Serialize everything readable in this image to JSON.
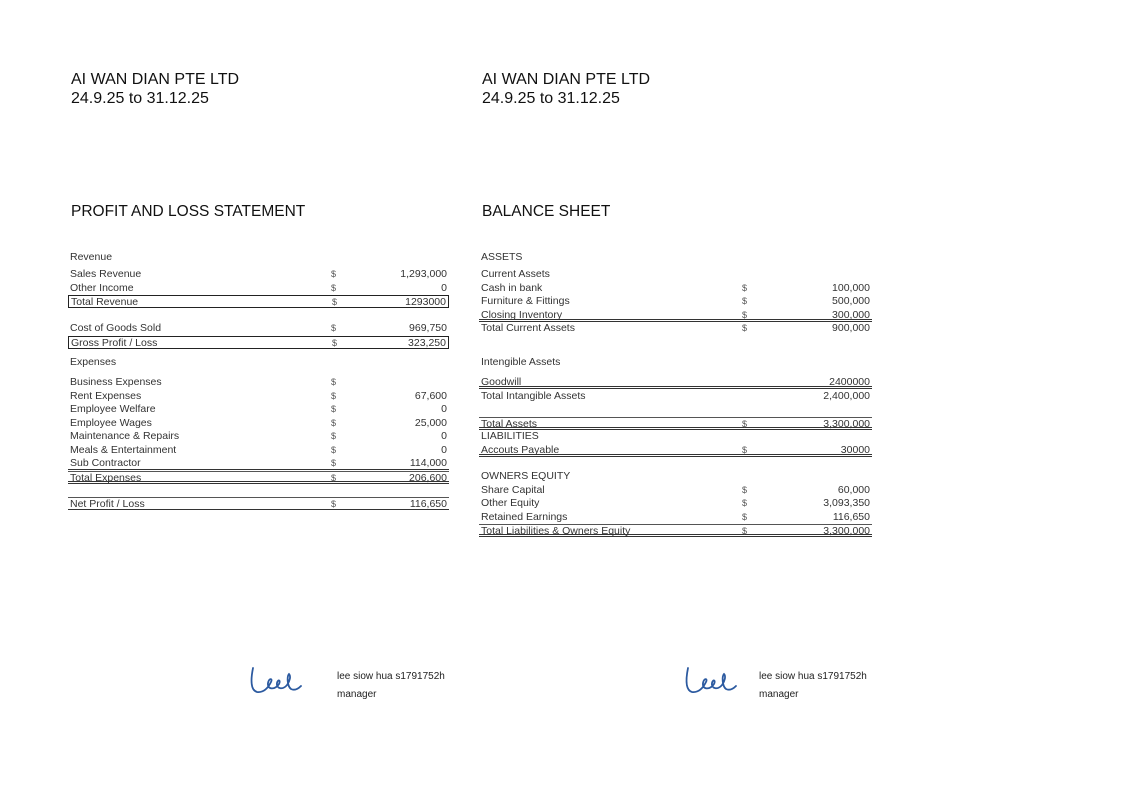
{
  "company": "AI WAN DIAN PTE LTD",
  "period": "24.9.25 to 31.12.25",
  "profit_loss": {
    "title": "PROFIT AND LOSS STATEMENT",
    "rows": [
      {
        "label": "Revenue",
        "currency": "",
        "value": ""
      },
      {
        "label": "Sales Revenue",
        "currency": "$",
        "value": "1,293,000"
      },
      {
        "label": "Other Income",
        "currency": "$",
        "value": "0"
      },
      {
        "label": "Total Revenue",
        "currency": "$",
        "value": "1293000"
      },
      {
        "label": "Cost of Goods Sold",
        "currency": "$",
        "value": "969,750"
      },
      {
        "label": "Gross Profit / Loss",
        "currency": "$",
        "value": "323,250"
      },
      {
        "label": "Expenses",
        "currency": "",
        "value": ""
      },
      {
        "label": "Business Expenses",
        "currency": "$",
        "value": ""
      },
      {
        "label": "Rent Expenses",
        "currency": "$",
        "value": "67,600"
      },
      {
        "label": "Employee Welfare",
        "currency": "$",
        "value": "0"
      },
      {
        "label": "Employee Wages",
        "currency": "$",
        "value": "25,000"
      },
      {
        "label": "Maintenance  & Repairs",
        "currency": "$",
        "value": "0"
      },
      {
        "label": "Meals & Entertainment",
        "currency": "$",
        "value": "0"
      },
      {
        "label": "Sub Contractor",
        "currency": "$",
        "value": "114,000"
      },
      {
        "label": "Total Expenses",
        "currency": "$",
        "value": "206,600"
      },
      {
        "label": "Net  Profit / Loss",
        "currency": "$",
        "value": "116,650"
      }
    ]
  },
  "balance_sheet": {
    "title": "BALANCE SHEET",
    "rows": [
      {
        "label": "ASSETS",
        "currency": "",
        "value": ""
      },
      {
        "label": "Current Assets",
        "currency": "",
        "value": ""
      },
      {
        "label": "Cash in bank",
        "currency": "$",
        "value": "100,000"
      },
      {
        "label": "Furniture & Fittings",
        "currency": "$",
        "value": "500,000"
      },
      {
        "label": "Closing Inventory",
        "currency": "$",
        "value": "300,000"
      },
      {
        "label": "Total Current Assets",
        "currency": "$",
        "value": "900,000"
      },
      {
        "label": "Intengible Assets",
        "currency": "",
        "value": ""
      },
      {
        "label": "Goodwill",
        "currency": "",
        "value": "2400000"
      },
      {
        "label": "Total Intangible Assets",
        "currency": "",
        "value": "2,400,000"
      },
      {
        "label": "Total Assets",
        "currency": "$",
        "value": "3,300,000"
      },
      {
        "label": "LIABILITIES",
        "currency": "",
        "value": ""
      },
      {
        "label": "Accouts  Payable",
        "currency": "$",
        "value": "30000"
      },
      {
        "label": "OWNERS EQUITY",
        "currency": "",
        "value": ""
      },
      {
        "label": "Share Capital",
        "currency": "$",
        "value": "60,000"
      },
      {
        "label": "Other Equity",
        "currency": "$",
        "value": "3,093,350"
      },
      {
        "label": "Retained Earnings",
        "currency": "$",
        "value": "116,650"
      },
      {
        "label": "Total Liabilities & Owners Equity",
        "currency": "$",
        "value": "3,300,000"
      }
    ]
  },
  "signatory": {
    "name": "lee siow hua s1791752h",
    "title": "manager"
  },
  "colors": {
    "signature_ink": "#2c5aa0"
  }
}
